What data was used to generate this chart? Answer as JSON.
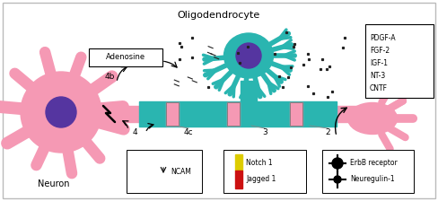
{
  "title": "Oligodendrocyte",
  "neuron_label": "Neuron",
  "neuron_color": "#f599b4",
  "oligo_color": "#2ab5b0",
  "nucleus_color": "#5535a0",
  "axon_color": "#f599b4",
  "myelin_color": "#2ab5b0",
  "adenosine_label": "Adenosine",
  "pdgf_lines": [
    "PDGF-A",
    "FGF-2",
    "IGF-1",
    "NT-3",
    "CNTF"
  ],
  "legend_ncam": "NCAM",
  "legend_notch": "Notch 1",
  "legend_jagged": "Jagged 1",
  "legend_erbb": "ErbB receptor",
  "legend_nrg": "Neuregulin-1",
  "label_4b": "4b",
  "label_4c": "4c",
  "label_3": "3",
  "label_2": "2",
  "label_4": "4",
  "jagged_color": "#cc1111",
  "notch_color": "#ddcc00",
  "dot_color": "#222222"
}
